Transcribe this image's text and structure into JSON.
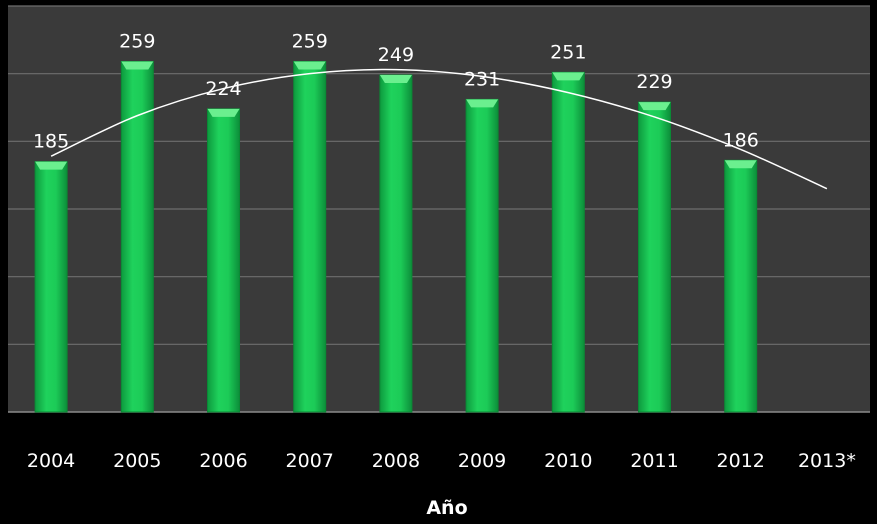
{
  "chart_data": {
    "type": "bar",
    "categories": [
      "2004",
      "2005",
      "2006",
      "2007",
      "2008",
      "2009",
      "2010",
      "2011",
      "2012",
      "2013*"
    ],
    "values": [
      185,
      259,
      224,
      259,
      249,
      231,
      251,
      229,
      186,
      null
    ],
    "data_labels": [
      "185",
      "259",
      "224",
      "259",
      "249",
      "231",
      "251",
      "229",
      "186",
      ""
    ],
    "trendline": {
      "type": "polynomial",
      "points": [
        [
          2004,
          189
        ],
        [
          2005,
          219
        ],
        [
          2006,
          239
        ],
        [
          2007,
          250
        ],
        [
          2008,
          253
        ],
        [
          2009,
          248
        ],
        [
          2010,
          236
        ],
        [
          2011,
          218
        ],
        [
          2012,
          194
        ],
        [
          2013,
          165
        ]
      ]
    },
    "title": "",
    "xlabel": "Año",
    "ylabel": "",
    "ylim": [
      0,
      300
    ],
    "grid": true,
    "legend": "none",
    "colors": {
      "bar": "#18c050",
      "bar_edge": "#0a8a35",
      "bar_top": "#6bef8f",
      "plot_bg": "#3a3a3a",
      "page_bg": "#000000",
      "grid": "#6e6e6e",
      "trendline": "#ffffff",
      "text": "#ffffff"
    }
  }
}
